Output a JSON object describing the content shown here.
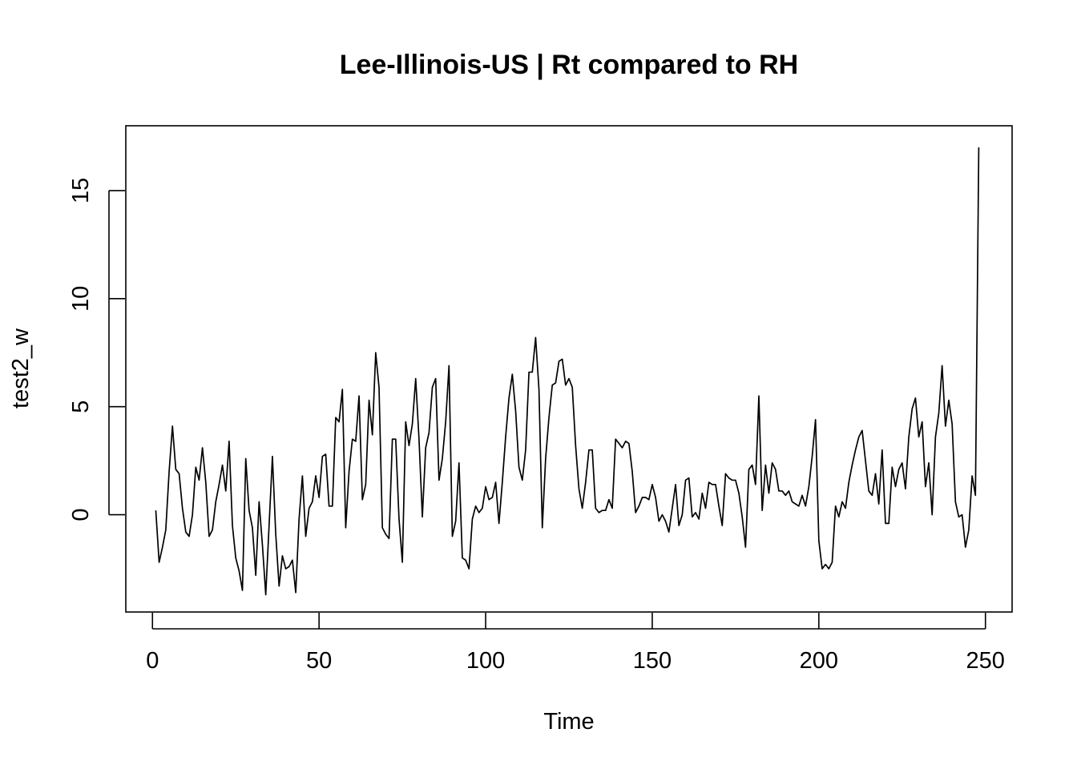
{
  "chart_data": {
    "type": "line",
    "title": "Lee-Illinois-US | Rt compared to RH",
    "xlabel": "Time",
    "ylabel": "test2_w",
    "xlim": [
      -8,
      258
    ],
    "ylim": [
      -4.5,
      18
    ],
    "x_ticks": [
      0,
      50,
      100,
      150,
      200,
      250
    ],
    "y_ticks": [
      0,
      5,
      10,
      15
    ],
    "x_tick_labels": [
      "0",
      "50",
      "100",
      "150",
      "200",
      "250"
    ],
    "y_tick_labels": [
      "0",
      "5",
      "10",
      "15"
    ],
    "grid": false,
    "series": [
      {
        "name": "test2_w",
        "x": [
          1,
          2,
          3,
          4,
          5,
          6,
          7,
          8,
          9,
          10,
          11,
          12,
          13,
          14,
          15,
          16,
          17,
          18,
          19,
          20,
          21,
          22,
          23,
          24,
          25,
          26,
          27,
          28,
          29,
          30,
          31,
          32,
          33,
          34,
          35,
          36,
          37,
          38,
          39,
          40,
          41,
          42,
          43,
          44,
          45,
          46,
          47,
          48,
          49,
          50,
          51,
          52,
          53,
          54,
          55,
          56,
          57,
          58,
          59,
          60,
          61,
          62,
          63,
          64,
          65,
          66,
          67,
          68,
          69,
          70,
          71,
          72,
          73,
          74,
          75,
          76,
          77,
          78,
          79,
          80,
          81,
          82,
          83,
          84,
          85,
          86,
          87,
          88,
          89,
          90,
          91,
          92,
          93,
          94,
          95,
          96,
          97,
          98,
          99,
          100,
          101,
          102,
          103,
          104,
          105,
          106,
          107,
          108,
          109,
          110,
          111,
          112,
          113,
          114,
          115,
          116,
          117,
          118,
          119,
          120,
          121,
          122,
          123,
          124,
          125,
          126,
          127,
          128,
          129,
          130,
          131,
          132,
          133,
          134,
          135,
          136,
          137,
          138,
          139,
          140,
          141,
          142,
          143,
          144,
          145,
          146,
          147,
          148,
          149,
          150,
          151,
          152,
          153,
          154,
          155,
          156,
          157,
          158,
          159,
          160,
          161,
          162,
          163,
          164,
          165,
          166,
          167,
          168,
          169,
          170,
          171,
          172,
          173,
          174,
          175,
          176,
          177,
          178,
          179,
          180,
          181,
          182,
          183,
          184,
          185,
          186,
          187,
          188,
          189,
          190,
          191,
          192,
          193,
          194,
          195,
          196,
          197,
          198,
          199,
          200,
          201,
          202,
          203,
          204,
          205,
          206,
          207,
          208,
          209,
          210,
          211,
          212,
          213,
          214,
          215,
          216,
          217,
          218,
          219,
          220,
          221,
          222,
          223,
          224,
          225,
          226,
          227,
          228,
          229,
          230,
          231,
          232,
          233,
          234,
          235,
          236,
          237,
          238,
          239,
          240,
          241,
          242,
          243,
          244,
          245,
          246,
          247,
          248
        ],
        "values": [
          0.2,
          -2.2,
          -1.5,
          -0.7,
          2.0,
          4.1,
          2.1,
          1.9,
          0.3,
          -0.8,
          -1.0,
          0.0,
          2.2,
          1.6,
          3.1,
          1.5,
          -1.0,
          -0.7,
          0.6,
          1.4,
          2.3,
          1.1,
          3.4,
          -0.5,
          -2.0,
          -2.6,
          -3.5,
          2.6,
          0.2,
          -0.6,
          -2.8,
          0.6,
          -1.4,
          -3.7,
          -0.5,
          2.7,
          -0.9,
          -3.3,
          -1.9,
          -2.5,
          -2.4,
          -2.1,
          -3.6,
          -0.2,
          1.8,
          -1.0,
          0.3,
          0.6,
          1.8,
          0.8,
          2.7,
          2.8,
          0.4,
          0.4,
          4.5,
          4.3,
          5.8,
          -0.6,
          2.0,
          3.5,
          3.4,
          5.5,
          0.7,
          1.4,
          5.3,
          3.7,
          7.5,
          5.9,
          -0.6,
          -0.9,
          -1.1,
          3.5,
          3.5,
          -0.2,
          -2.2,
          4.3,
          3.2,
          4.2,
          6.3,
          3.5,
          -0.1,
          3.1,
          3.8,
          5.9,
          6.3,
          1.6,
          2.6,
          4.3,
          6.9,
          -1.0,
          -0.3,
          2.4,
          -2.0,
          -2.1,
          -2.5,
          -0.2,
          0.4,
          0.1,
          0.3,
          1.3,
          0.7,
          0.8,
          1.5,
          -0.4,
          1.5,
          3.6,
          5.4,
          6.5,
          4.8,
          2.2,
          1.6,
          3.0,
          6.6,
          6.6,
          8.2,
          5.8,
          -0.6,
          2.6,
          4.5,
          6.0,
          6.1,
          7.1,
          7.2,
          6.0,
          6.3,
          5.9,
          3.2,
          1.2,
          0.3,
          1.5,
          3.0,
          3.0,
          0.3,
          0.1,
          0.2,
          0.2,
          0.7,
          0.3,
          3.5,
          3.3,
          3.1,
          3.4,
          3.3,
          2.0,
          0.1,
          0.4,
          0.8,
          0.8,
          0.7,
          1.4,
          0.8,
          -0.3,
          0.0,
          -0.3,
          -0.8,
          0.3,
          1.4,
          -0.5,
          0.0,
          1.6,
          1.7,
          -0.1,
          0.1,
          -0.2,
          1.0,
          0.3,
          1.5,
          1.4,
          1.4,
          0.4,
          -0.5,
          1.9,
          1.7,
          1.6,
          1.6,
          1.0,
          -0.1,
          -1.5,
          2.1,
          2.3,
          1.4,
          5.5,
          0.2,
          2.3,
          1.0,
          2.4,
          2.1,
          1.1,
          1.1,
          0.9,
          1.1,
          0.6,
          0.5,
          0.4,
          0.9,
          0.4,
          1.3,
          2.7,
          4.4,
          -1.2,
          -2.5,
          -2.3,
          -2.5,
          -2.2,
          0.4,
          -0.1,
          0.6,
          0.3,
          1.5,
          2.3,
          3.0,
          3.6,
          3.9,
          2.5,
          1.1,
          0.9,
          1.9,
          0.5,
          3.0,
          -0.4,
          -0.4,
          2.2,
          1.3,
          2.1,
          2.4,
          1.2,
          3.6,
          4.9,
          5.4,
          3.6,
          4.3,
          1.3,
          2.4,
          0.0,
          3.6,
          4.7,
          6.9,
          4.1,
          5.3,
          4.2,
          0.6,
          -0.1,
          0.0,
          -1.5,
          -0.7,
          1.8,
          0.9,
          17.0
        ]
      }
    ]
  }
}
